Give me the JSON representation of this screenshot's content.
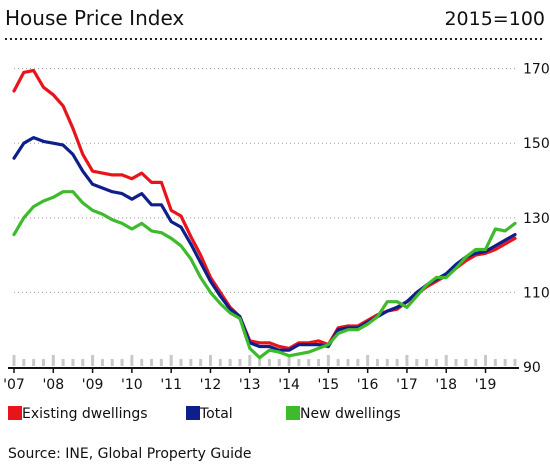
{
  "chart_data": {
    "type": "line",
    "title": "House Price Index",
    "subtitle": "2015=100",
    "source": "Source: INE, Global Property Guide",
    "ylim": [
      90,
      175
    ],
    "y_ticks": [
      90,
      110,
      130,
      150,
      170
    ],
    "x_range": [
      2007.0,
      2019.75
    ],
    "x_ticks": [
      {
        "x": 2007,
        "label": "'07"
      },
      {
        "x": 2008,
        "label": "'08"
      },
      {
        "x": 2009,
        "label": "'09"
      },
      {
        "x": 2010,
        "label": "'10"
      },
      {
        "x": 2011,
        "label": "'11"
      },
      {
        "x": 2012,
        "label": "'12"
      },
      {
        "x": 2013,
        "label": "'13"
      },
      {
        "x": 2014,
        "label": "'14"
      },
      {
        "x": 2015,
        "label": "'15"
      },
      {
        "x": 2016,
        "label": "'16"
      },
      {
        "x": 2017,
        "label": "'17"
      },
      {
        "x": 2018,
        "label": "'18"
      },
      {
        "x": 2019,
        "label": "'19"
      }
    ],
    "grid": true,
    "legend_position": "bottom",
    "x": [
      2007.0,
      2007.25,
      2007.5,
      2007.75,
      2008.0,
      2008.25,
      2008.5,
      2008.75,
      2009.0,
      2009.25,
      2009.5,
      2009.75,
      2010.0,
      2010.25,
      2010.5,
      2010.75,
      2011.0,
      2011.25,
      2011.5,
      2011.75,
      2012.0,
      2012.25,
      2012.5,
      2012.75,
      2013.0,
      2013.25,
      2013.5,
      2013.75,
      2014.0,
      2014.25,
      2014.5,
      2014.75,
      2015.0,
      2015.25,
      2015.5,
      2015.75,
      2016.0,
      2016.25,
      2016.5,
      2016.75,
      2017.0,
      2017.25,
      2017.5,
      2017.75,
      2018.0,
      2018.25,
      2018.5,
      2018.75,
      2019.0,
      2019.25,
      2019.5,
      2019.75
    ],
    "series": [
      {
        "name": "Existing dwellings",
        "color": "#e8141c",
        "values": [
          164,
          169,
          169.5,
          165,
          163,
          160,
          154,
          147,
          142.5,
          142,
          141.5,
          141.5,
          140.5,
          142,
          139.5,
          139.5,
          132,
          130.5,
          125,
          120,
          114,
          110,
          106,
          103.5,
          97,
          96.5,
          96.5,
          95.5,
          95,
          96.5,
          96.5,
          97,
          96,
          100.5,
          101,
          101,
          102.5,
          104,
          105,
          105.5,
          107.5,
          109.5,
          111.5,
          113,
          114.5,
          116.5,
          118.5,
          120,
          120.5,
          121.5,
          123,
          124.5
        ]
      },
      {
        "name": "Total",
        "color": "#0e1f8c",
        "values": [
          146,
          150,
          151.5,
          150.5,
          150,
          149.5,
          147,
          142.5,
          139,
          138,
          137,
          136.5,
          135,
          136.5,
          133.5,
          133.5,
          129,
          127.5,
          123,
          118,
          113,
          109,
          105.5,
          103.5,
          96.5,
          95.5,
          95.5,
          94.5,
          94.5,
          96,
          96,
          96,
          95.5,
          100,
          100.5,
          100.5,
          102,
          103.5,
          105,
          106,
          107.5,
          110,
          112,
          113.5,
          115,
          117.5,
          119.5,
          120.5,
          121,
          122.5,
          124,
          125.5
        ]
      },
      {
        "name": "New dwellings",
        "color": "#3dbb2c",
        "values": [
          125.5,
          130,
          133,
          134.5,
          135.5,
          137,
          137,
          134,
          132,
          131,
          129.5,
          128.5,
          127,
          128.5,
          126.5,
          126,
          124.5,
          122.5,
          119,
          114,
          110,
          107,
          104.5,
          103,
          95,
          92.5,
          94.5,
          94,
          93,
          93.5,
          94,
          95,
          96,
          99,
          100,
          100,
          101.5,
          103.5,
          107.5,
          107.5,
          106,
          109,
          112,
          114,
          114,
          116.5,
          119.5,
          121.5,
          121.5,
          127,
          126.5,
          128.5
        ]
      }
    ]
  }
}
